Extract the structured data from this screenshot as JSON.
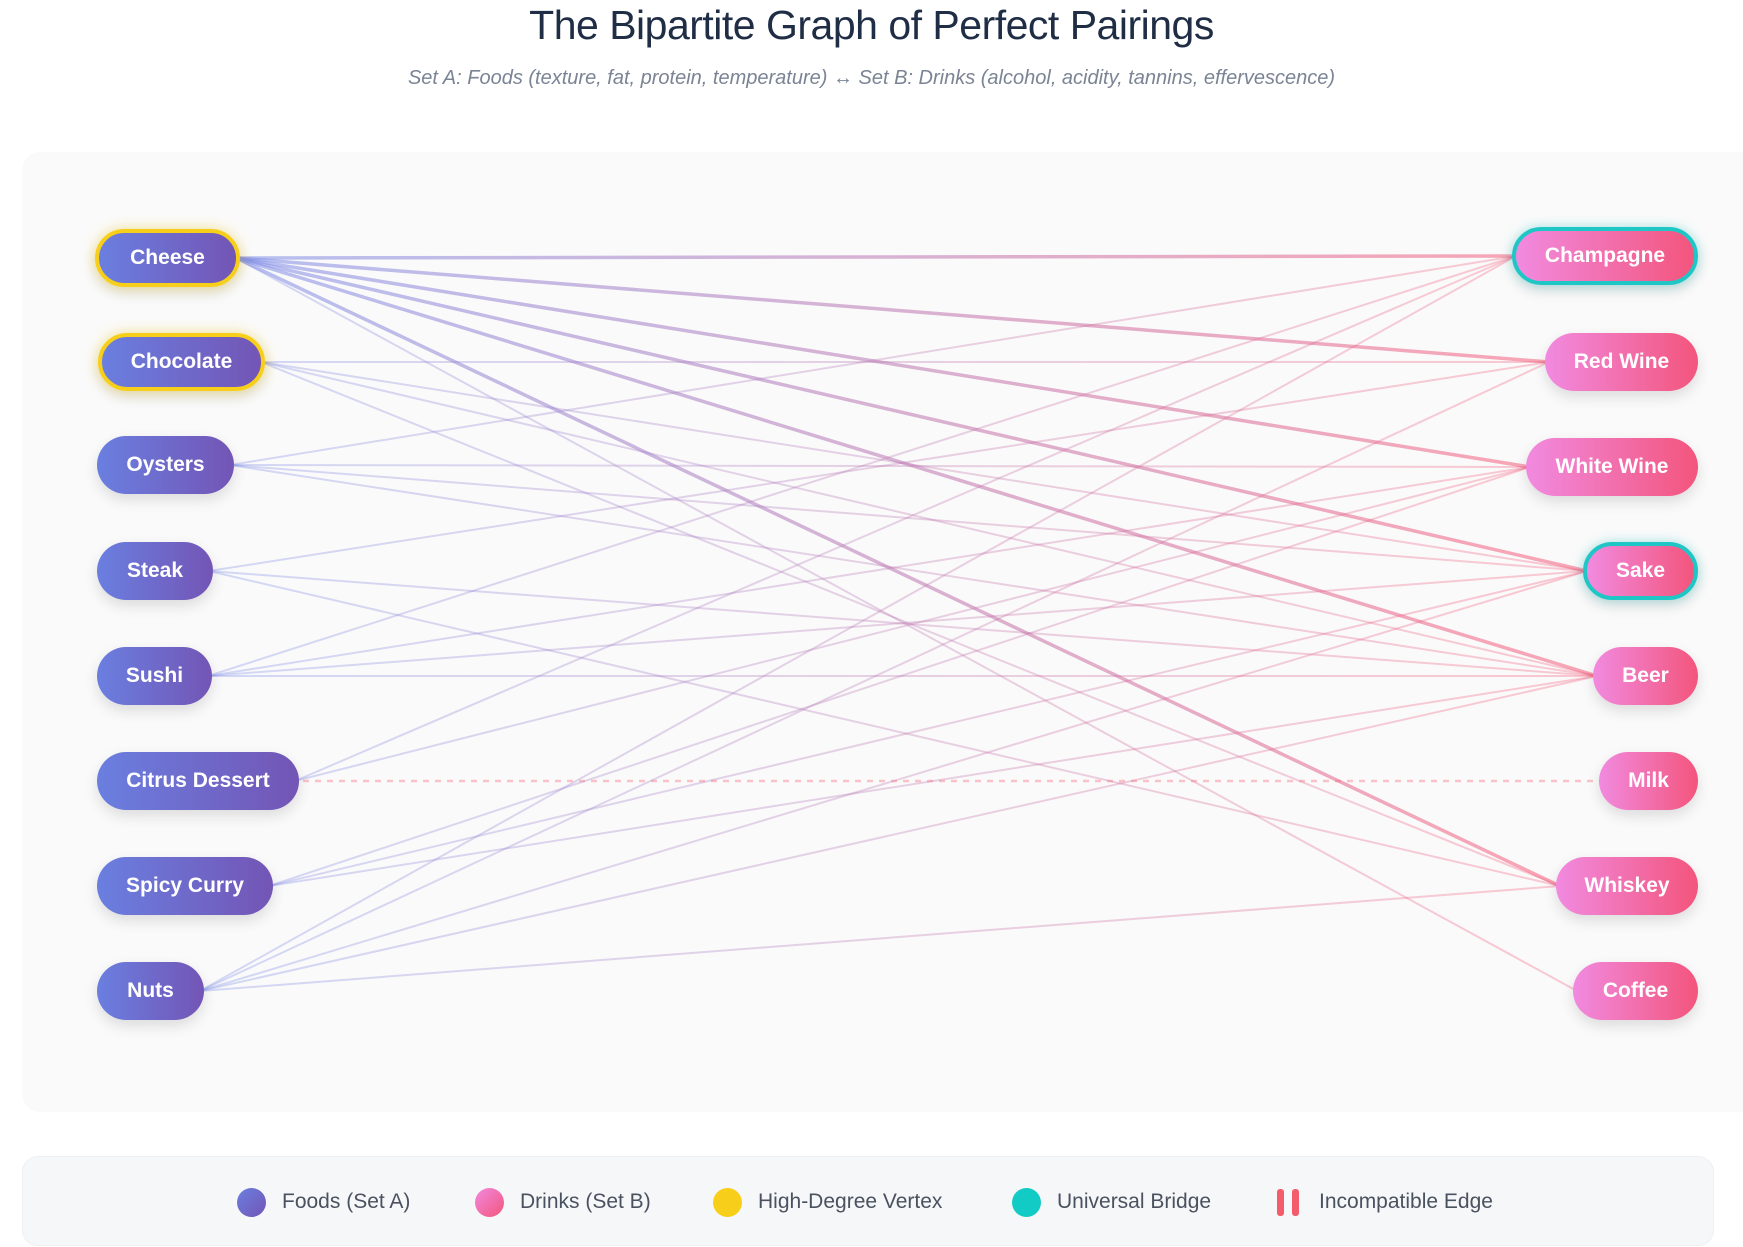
{
  "title": "The Bipartite Graph of Perfect Pairings",
  "subtitle": "Set A: Foods (texture, fat, protein, temperature) ↔ Set B: Drinks (alcohol, acidity, tannins, effervescence)",
  "foods": [
    {
      "id": "cheese",
      "label": "Cheese",
      "highlight": "hub"
    },
    {
      "id": "chocolate",
      "label": "Chocolate",
      "highlight": "hub"
    },
    {
      "id": "oysters",
      "label": "Oysters",
      "highlight": ""
    },
    {
      "id": "steak",
      "label": "Steak",
      "highlight": ""
    },
    {
      "id": "sushi",
      "label": "Sushi",
      "highlight": ""
    },
    {
      "id": "citrus",
      "label": "Citrus Dessert",
      "highlight": ""
    },
    {
      "id": "curry",
      "label": "Spicy Curry",
      "highlight": ""
    },
    {
      "id": "nuts",
      "label": "Nuts",
      "highlight": ""
    }
  ],
  "drinks": [
    {
      "id": "champagne",
      "label": "Champagne",
      "highlight": "bridge"
    },
    {
      "id": "redwine",
      "label": "Red Wine",
      "highlight": ""
    },
    {
      "id": "whitewine",
      "label": "White Wine",
      "highlight": ""
    },
    {
      "id": "sake",
      "label": "Sake",
      "highlight": "bridge"
    },
    {
      "id": "beer",
      "label": "Beer",
      "highlight": ""
    },
    {
      "id": "milk",
      "label": "Milk",
      "highlight": ""
    },
    {
      "id": "whiskey",
      "label": "Whiskey",
      "highlight": ""
    },
    {
      "id": "coffee",
      "label": "Coffee",
      "highlight": ""
    }
  ],
  "edges": [
    {
      "from": "cheese",
      "to": "champagne",
      "strong": true
    },
    {
      "from": "cheese",
      "to": "redwine",
      "strong": true
    },
    {
      "from": "cheese",
      "to": "whitewine",
      "strong": true
    },
    {
      "from": "cheese",
      "to": "sake",
      "strong": true
    },
    {
      "from": "cheese",
      "to": "beer",
      "strong": true
    },
    {
      "from": "cheese",
      "to": "whiskey",
      "strong": true
    },
    {
      "from": "cheese",
      "to": "coffee",
      "strong": false
    },
    {
      "from": "chocolate",
      "to": "redwine",
      "strong": false
    },
    {
      "from": "chocolate",
      "to": "sake",
      "strong": false
    },
    {
      "from": "chocolate",
      "to": "beer",
      "strong": false
    },
    {
      "from": "chocolate",
      "to": "whiskey",
      "strong": false
    },
    {
      "from": "oysters",
      "to": "champagne",
      "strong": false
    },
    {
      "from": "oysters",
      "to": "whitewine",
      "strong": false
    },
    {
      "from": "oysters",
      "to": "sake",
      "strong": false
    },
    {
      "from": "oysters",
      "to": "beer",
      "strong": false
    },
    {
      "from": "steak",
      "to": "redwine",
      "strong": false
    },
    {
      "from": "steak",
      "to": "beer",
      "strong": false
    },
    {
      "from": "steak",
      "to": "whiskey",
      "strong": false
    },
    {
      "from": "sushi",
      "to": "champagne",
      "strong": false
    },
    {
      "from": "sushi",
      "to": "whitewine",
      "strong": false
    },
    {
      "from": "sushi",
      "to": "sake",
      "strong": false
    },
    {
      "from": "sushi",
      "to": "beer",
      "strong": false
    },
    {
      "from": "citrus",
      "to": "champagne",
      "strong": false
    },
    {
      "from": "citrus",
      "to": "whitewine",
      "strong": false
    },
    {
      "from": "curry",
      "to": "whitewine",
      "strong": false
    },
    {
      "from": "curry",
      "to": "sake",
      "strong": false
    },
    {
      "from": "curry",
      "to": "beer",
      "strong": false
    },
    {
      "from": "nuts",
      "to": "champagne",
      "strong": false
    },
    {
      "from": "nuts",
      "to": "redwine",
      "strong": false
    },
    {
      "from": "nuts",
      "to": "sake",
      "strong": false
    },
    {
      "from": "nuts",
      "to": "beer",
      "strong": false
    },
    {
      "from": "nuts",
      "to": "whiskey",
      "strong": false
    }
  ],
  "incompatible_edges": [
    {
      "from": "citrus",
      "to": "milk"
    }
  ],
  "colors": {
    "food_start": "#6a7fe0",
    "food_end": "#7355b5",
    "drink_start": "#f18ae0",
    "drink_end": "#f3557c",
    "high_degree": "#f7cf1b",
    "universal_bridge": "#1fc6c6",
    "incompatible": "#f45b6b"
  },
  "legend": [
    {
      "key": "food",
      "label": "Foods (Set A)"
    },
    {
      "key": "drink",
      "label": "Drinks (Set B)"
    },
    {
      "key": "hub",
      "label": "High-Degree Vertex"
    },
    {
      "key": "bridge",
      "label": "Universal Bridge"
    },
    {
      "key": "incompatible",
      "label": "Incompatible Edge"
    }
  ]
}
